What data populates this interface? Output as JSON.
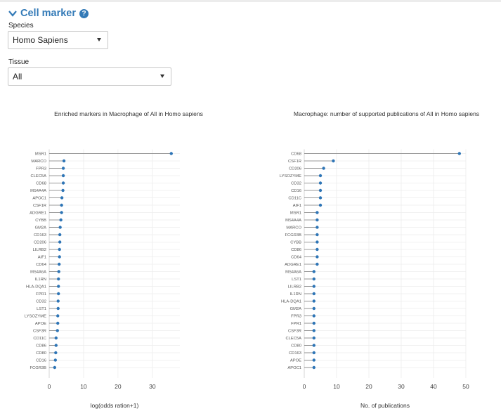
{
  "panel": {
    "title": "Cell marker",
    "species_label": "Species",
    "species_value": "Homo Sapiens",
    "tissue_label": "Tissue",
    "tissue_value": "All"
  },
  "colors": {
    "accent": "#337ab7",
    "marker": "#2e75b6",
    "stem": "#7a7a7a",
    "grid": "#ececec"
  },
  "icons": {
    "collapse": "chevron-down-icon",
    "help": "question-icon",
    "dropdown": "caret-down-icon"
  },
  "chart_data": [
    {
      "type": "lollipop",
      "title": "Enriched markers in Macrophage of All in Homo sapiens",
      "xlabel": "log(odds ration+1)",
      "ylabel": "",
      "xlim": [
        0,
        38
      ],
      "xticks": [
        0,
        10,
        20,
        30
      ],
      "grid": true,
      "categories": [
        "MSR1",
        "MARCO",
        "FPR3",
        "CLEC5A",
        "CD68",
        "MS4A4A",
        "APOC1",
        "CSF1R",
        "ADGRE1",
        "CYBB",
        "GM2A",
        "CD163",
        "CD206",
        "LILRB2",
        "AIF1",
        "CD64",
        "MS4A6A",
        "IL1RN",
        "HLA-DQA1",
        "FPR1",
        "CD32",
        "LST1",
        "LYSOZYME",
        "APOE",
        "CSF3R",
        "CD11C",
        "CD86",
        "CD80",
        "CD16",
        "FCGR3B"
      ],
      "values": [
        35.5,
        4.3,
        4.1,
        4.1,
        4.1,
        4.0,
        3.7,
        3.6,
        3.6,
        3.4,
        3.2,
        3.1,
        3.1,
        3.0,
        3.0,
        2.9,
        2.8,
        2.7,
        2.7,
        2.7,
        2.6,
        2.6,
        2.5,
        2.5,
        2.4,
        2.0,
        2.0,
        1.9,
        1.8,
        1.6
      ]
    },
    {
      "type": "lollipop",
      "title": "Macrophage: number of supported publications of All in Homo sapiens",
      "xlabel": "No. of publications",
      "ylabel": "",
      "xlim": [
        0,
        50
      ],
      "xticks": [
        0,
        10,
        20,
        30,
        40,
        50
      ],
      "grid": true,
      "categories": [
        "CD68",
        "CSF1R",
        "CD206",
        "LYSOZYME",
        "CD32",
        "CD16",
        "CD11C",
        "AIF1",
        "MSR1",
        "MS4A4A",
        "MARCO",
        "FCGR3B",
        "CYBB",
        "CD86",
        "CD64",
        "ADGRE1",
        "MS4A6A",
        "LST1",
        "LILRB2",
        "IL1RN",
        "HLA-DQA1",
        "GM2A",
        "FPR3",
        "FPR1",
        "CSF3R",
        "CLEC5A",
        "CD80",
        "CD163",
        "APOE",
        "APOC1"
      ],
      "values": [
        48,
        9,
        6,
        5,
        5,
        5,
        5,
        5,
        4,
        4,
        4,
        4,
        4,
        4,
        4,
        4,
        3,
        3,
        3,
        3,
        3,
        3,
        3,
        3,
        3,
        3,
        3,
        3,
        3,
        3
      ]
    }
  ]
}
